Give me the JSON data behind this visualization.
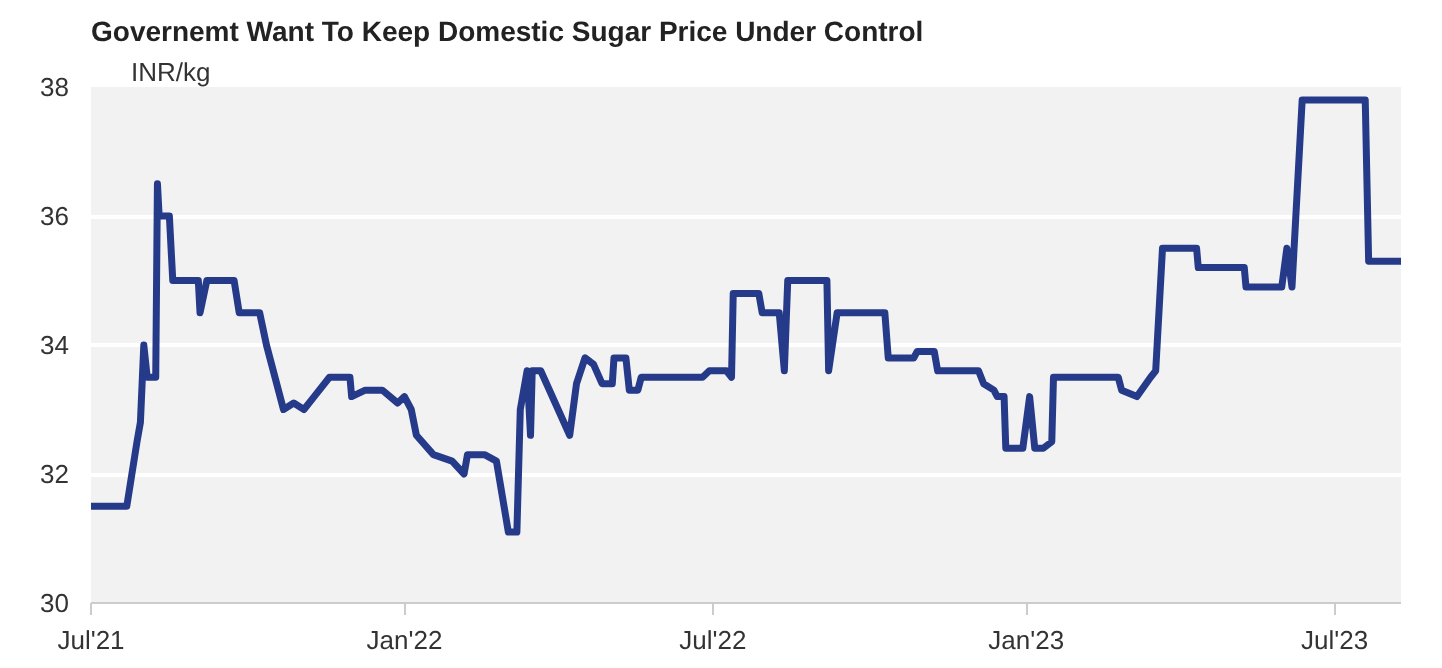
{
  "chart_data": {
    "type": "line",
    "title": "Governemt Want To Keep Domestic Sugar Price Under Control",
    "ylabel": "INR/kg",
    "x": [
      "2021-07-01",
      "2021-07-22",
      "2021-07-28",
      "2021-07-30",
      "2021-08-01",
      "2021-08-03",
      "2021-08-08",
      "2021-08-09",
      "2021-08-10",
      "2021-08-16",
      "2021-08-18",
      "2021-09-02",
      "2021-09-03",
      "2021-09-07",
      "2021-09-23",
      "2021-09-26",
      "2021-10-08",
      "2021-10-12",
      "2021-10-17",
      "2021-10-22",
      "2021-10-28",
      "2021-11-03",
      "2021-11-09",
      "2021-11-18",
      "2021-11-30",
      "2021-12-01",
      "2021-12-09",
      "2021-12-19",
      "2021-12-28",
      "2022-01-01",
      "2022-01-05",
      "2022-01-08",
      "2022-01-18",
      "2022-01-29",
      "2022-02-05",
      "2022-02-07",
      "2022-02-17",
      "2022-02-24",
      "2022-03-03",
      "2022-03-08",
      "2022-03-10",
      "2022-03-14",
      "2022-03-16",
      "2022-03-17",
      "2022-03-22",
      "2022-04-08",
      "2022-04-12",
      "2022-04-17",
      "2022-04-22",
      "2022-04-27",
      "2022-05-03",
      "2022-05-04",
      "2022-05-11",
      "2022-05-13",
      "2022-05-18",
      "2022-05-20",
      "2022-06-25",
      "2022-06-29",
      "2022-07-09",
      "2022-07-12",
      "2022-07-13",
      "2022-07-28",
      "2022-07-30",
      "2022-08-09",
      "2022-08-12",
      "2022-08-14",
      "2022-09-06",
      "2022-09-07",
      "2022-09-12",
      "2022-10-10",
      "2022-10-12",
      "2022-10-27",
      "2022-10-29",
      "2022-11-08",
      "2022-11-10",
      "2022-12-04",
      "2022-12-07",
      "2022-12-13",
      "2022-12-15",
      "2022-12-19",
      "2022-12-20",
      "2022-12-30",
      "2023-01-03",
      "2023-01-06",
      "2023-01-11",
      "2023-01-16",
      "2023-01-17",
      "2023-02-24",
      "2023-02-26",
      "2023-03-07",
      "2023-03-15",
      "2023-03-18",
      "2023-03-22",
      "2023-04-11",
      "2023-04-12",
      "2023-05-09",
      "2023-05-10",
      "2023-05-31",
      "2023-06-03",
      "2023-06-06",
      "2023-06-12",
      "2023-07-19",
      "2023-07-21",
      "2023-08-09"
    ],
    "series": [
      {
        "color": "#263a8a",
        "values": [
          31.5,
          31.5,
          32.5,
          32.8,
          34.0,
          33.5,
          33.5,
          36.5,
          36.0,
          36.0,
          35.0,
          35.0,
          34.5,
          35.0,
          35.0,
          34.5,
          34.5,
          34.0,
          33.5,
          33.0,
          33.1,
          33.0,
          33.2,
          33.5,
          33.5,
          33.2,
          33.3,
          33.3,
          33.1,
          33.2,
          33.0,
          32.6,
          32.3,
          32.2,
          32.0,
          32.3,
          32.3,
          32.2,
          31.1,
          31.1,
          33.0,
          33.6,
          32.6,
          33.6,
          33.6,
          32.6,
          33.4,
          33.8,
          33.7,
          33.4,
          33.4,
          33.8,
          33.8,
          33.3,
          33.3,
          33.5,
          33.5,
          33.6,
          33.6,
          33.5,
          34.8,
          34.8,
          34.5,
          34.5,
          33.6,
          35.0,
          35.0,
          33.6,
          34.5,
          34.5,
          33.8,
          33.8,
          33.9,
          33.9,
          33.6,
          33.6,
          33.4,
          33.3,
          33.2,
          33.2,
          32.4,
          32.4,
          33.2,
          32.4,
          32.4,
          32.5,
          33.5,
          33.5,
          33.3,
          33.2,
          33.5,
          33.6,
          35.5,
          35.5,
          35.2,
          35.2,
          34.9,
          34.9,
          35.5,
          34.9,
          37.8,
          37.8,
          35.3,
          35.3
        ]
      }
    ],
    "xlim": [
      "2021-07-01",
      "2023-08-09"
    ],
    "xticks": [
      {
        "value": "2021-07-01",
        "label": "Jul'21"
      },
      {
        "value": "2022-01-01",
        "label": "Jan'22"
      },
      {
        "value": "2022-07-01",
        "label": "Jul'22"
      },
      {
        "value": "2023-01-01",
        "label": "Jan'23"
      },
      {
        "value": "2023-07-01",
        "label": "Jul'23"
      }
    ],
    "ylim": [
      30,
      38
    ],
    "yticks": [
      30,
      32,
      34,
      36,
      38
    ],
    "grid": "y",
    "line_style": "solid"
  }
}
